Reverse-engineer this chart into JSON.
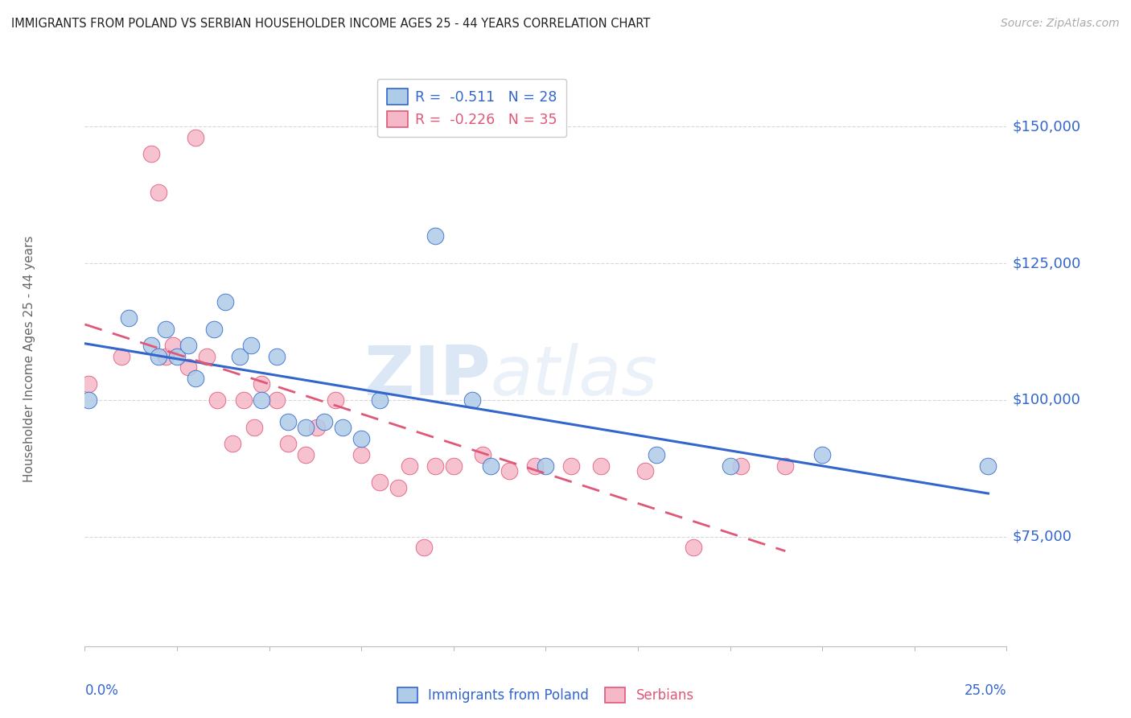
{
  "title": "IMMIGRANTS FROM POLAND VS SERBIAN HOUSEHOLDER INCOME AGES 25 - 44 YEARS CORRELATION CHART",
  "source": "Source: ZipAtlas.com",
  "ylabel": "Householder Income Ages 25 - 44 years",
  "ytick_values": [
    75000,
    100000,
    125000,
    150000
  ],
  "ylim": [
    55000,
    160000
  ],
  "xlim": [
    0.0,
    0.25
  ],
  "legend_poland": "R =  -0.511   N = 28",
  "legend_serbian": "R =  -0.226   N = 35",
  "poland_color": "#aecce8",
  "serbian_color": "#f5b8c8",
  "poland_line_color": "#3366cc",
  "serbian_line_color": "#e05878",
  "poland_scatter_x": [
    0.001,
    0.012,
    0.018,
    0.02,
    0.022,
    0.025,
    0.028,
    0.03,
    0.035,
    0.038,
    0.042,
    0.045,
    0.048,
    0.052,
    0.055,
    0.06,
    0.065,
    0.07,
    0.075,
    0.08,
    0.095,
    0.105,
    0.11,
    0.125,
    0.155,
    0.175,
    0.2,
    0.245
  ],
  "poland_scatter_y": [
    100000,
    115000,
    110000,
    108000,
    113000,
    108000,
    110000,
    104000,
    113000,
    118000,
    108000,
    110000,
    100000,
    108000,
    96000,
    95000,
    96000,
    95000,
    93000,
    100000,
    130000,
    100000,
    88000,
    88000,
    90000,
    88000,
    90000,
    88000
  ],
  "serbian_scatter_x": [
    0.001,
    0.01,
    0.018,
    0.02,
    0.022,
    0.024,
    0.028,
    0.03,
    0.033,
    0.036,
    0.04,
    0.043,
    0.046,
    0.048,
    0.052,
    0.055,
    0.06,
    0.063,
    0.068,
    0.075,
    0.08,
    0.085,
    0.088,
    0.092,
    0.095,
    0.1,
    0.108,
    0.115,
    0.122,
    0.132,
    0.14,
    0.152,
    0.165,
    0.178,
    0.19
  ],
  "serbian_scatter_y": [
    103000,
    108000,
    145000,
    138000,
    108000,
    110000,
    106000,
    148000,
    108000,
    100000,
    92000,
    100000,
    95000,
    103000,
    100000,
    92000,
    90000,
    95000,
    100000,
    90000,
    85000,
    84000,
    88000,
    73000,
    88000,
    88000,
    90000,
    87000,
    88000,
    88000,
    88000,
    87000,
    73000,
    88000,
    88000
  ],
  "watermark_zip": "ZIP",
  "watermark_atlas": "atlas",
  "background_color": "#ffffff",
  "grid_color": "#d8d8d8"
}
